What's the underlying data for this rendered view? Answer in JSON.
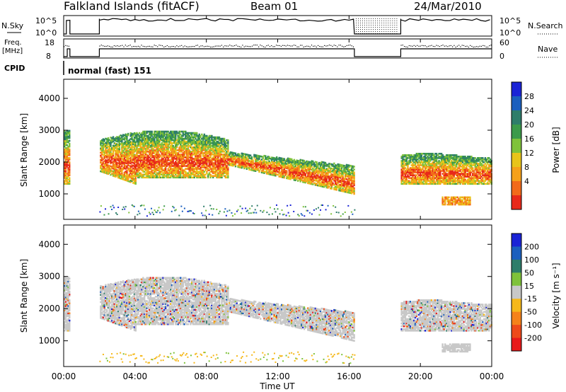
{
  "header": {
    "station": "Falkland Islands (fitACF)",
    "beam": "Beam 01",
    "date": "24/Mar/2010"
  },
  "panels": {
    "nsky": {
      "label": "N.Sky",
      "right_label": "N.Search",
      "left_ticks": [
        "10^5",
        "10^0"
      ],
      "right_ticks": [
        "10^5",
        "10^0"
      ]
    },
    "freq": {
      "label_line1": "Freq.",
      "label_line2": "[MHz]",
      "right_label": "Nave",
      "left_ticks": [
        "18",
        "8"
      ],
      "right_ticks": [
        "60",
        "0"
      ]
    },
    "cpid": {
      "label": "CPID",
      "text": "normal (fast) 151"
    }
  },
  "colors": {
    "power": [
      "#1a23d6",
      "#1b5fbe",
      "#2e7d6a",
      "#3c9a4a",
      "#7fc23a",
      "#e8c41a",
      "#f5a01a",
      "#f26a1a",
      "#e8291a"
    ],
    "velocity": [
      "#1a23d6",
      "#1b5fbe",
      "#2e7d6a",
      "#7fc23a",
      "#c8c8c8",
      "#f5b81a",
      "#f5821a",
      "#ee4a1a",
      "#e8191a"
    ]
  },
  "chart_data": [
    {
      "type": "heatmap",
      "name": "power",
      "ylabel": "Slant Range [km]",
      "yticks": [
        1000,
        2000,
        3000,
        4000
      ],
      "ylim": [
        200,
        4600
      ],
      "xlim": [
        0,
        24
      ],
      "colorbar_label": "Power [dB]",
      "colorbar_ticks": [
        "28",
        "24",
        "20",
        "16",
        "12",
        "8",
        "4"
      ]
    },
    {
      "type": "heatmap",
      "name": "velocity",
      "ylabel": "Slant Range [km]",
      "yticks": [
        1000,
        2000,
        3000,
        4000
      ],
      "ylim": [
        200,
        4600
      ],
      "xlim": [
        0,
        24
      ],
      "colorbar_label": "Velocity [m s⁻¹]",
      "colorbar_ticks": [
        "200",
        "100",
        "50",
        "15",
        "-15",
        "-50",
        "-100",
        "-200"
      ]
    }
  ],
  "xaxis": {
    "label": "Time UT",
    "ticks": [
      "00:00",
      "04:00",
      "08:00",
      "12:00",
      "16:00",
      "20:00",
      "00:00"
    ],
    "tick_hours": [
      0,
      4,
      8,
      12,
      16,
      20,
      24
    ]
  }
}
